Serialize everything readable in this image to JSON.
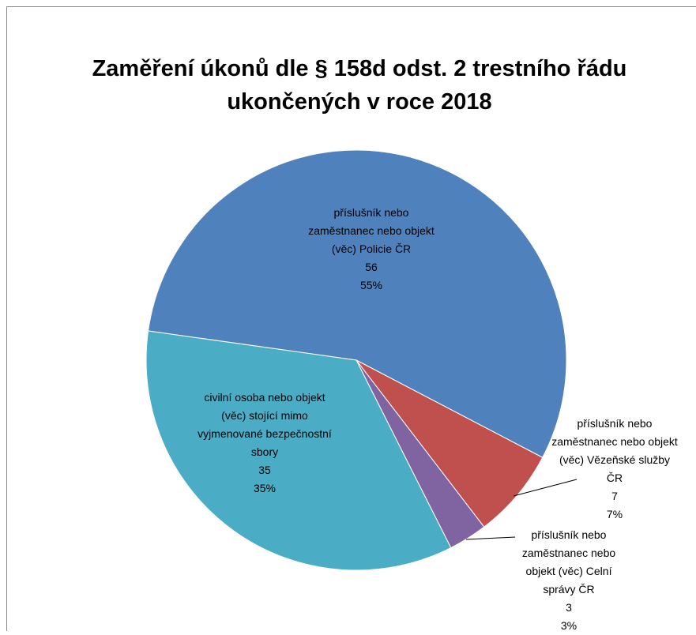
{
  "chart_data": {
    "type": "pie",
    "title": "Zaměření úkonů dle § 158d odst. 2 trestního řádu ukončených v roce 2018",
    "categories": [
      "příslušník nebo zaměstnanec nebo objekt (věc) Policie ČR",
      "příslušník nebo zaměstnanec nebo objekt (věc) Vězeňské služby ČR",
      "příslušník nebo zaměstnanec nebo objekt (věc) Celní správy ČR",
      "civilní osoba nebo objekt (věc) stojící mimo vyjmenované bezpečnostní sbory"
    ],
    "values": [
      56,
      7,
      3,
      35
    ],
    "percent_labels": [
      "55%",
      "7%",
      "3%",
      "35%"
    ],
    "colors": [
      "#4f81bd",
      "#c0504d",
      "#8064a2",
      "#4bacc6"
    ]
  }
}
